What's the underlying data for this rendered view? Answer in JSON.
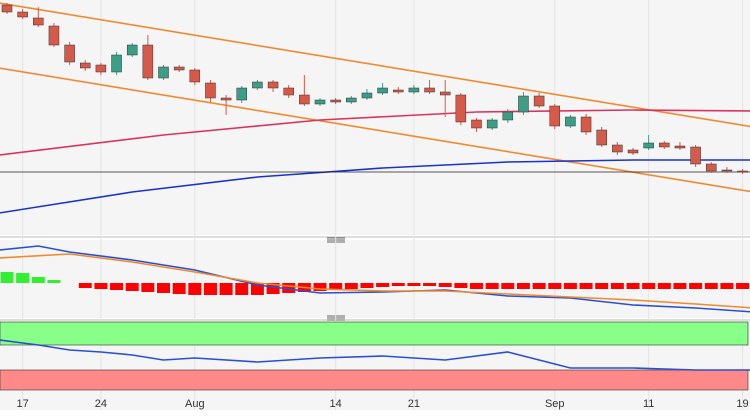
{
  "chart_data": [
    {
      "type": "candlestick",
      "categories": [
        null,
        "17",
        null,
        null,
        null,
        null,
        "24",
        null,
        null,
        null,
        null,
        null,
        "Aug",
        null,
        null,
        null,
        null,
        null,
        null,
        null,
        null,
        "14",
        null,
        null,
        null,
        null,
        "21",
        null,
        null,
        null,
        null,
        null,
        null,
        null,
        null,
        "Sep",
        null,
        null,
        null,
        null,
        null,
        "11",
        null,
        null,
        null,
        null,
        null,
        "19"
      ],
      "open": [
        230,
        223,
        217,
        209,
        190,
        172,
        170,
        163,
        180,
        190,
        157,
        168,
        165,
        152,
        137,
        135,
        147,
        153,
        147,
        140,
        131,
        135,
        133,
        137,
        142,
        145,
        143,
        147,
        143,
        140,
        115,
        107,
        115,
        123,
        139,
        129,
        109,
        118,
        105,
        90,
        85,
        87,
        92,
        89,
        88,
        71,
        65,
        64
      ],
      "high": [
        232,
        226,
        228,
        212,
        193,
        175,
        172,
        183,
        192,
        200,
        170,
        170,
        167,
        155,
        140,
        149,
        155,
        155,
        150,
        160,
        137,
        137,
        139,
        146,
        152,
        148,
        150,
        155,
        155,
        142,
        117,
        117,
        126,
        143,
        142,
        131,
        120,
        121,
        108,
        93,
        87,
        100,
        94,
        93,
        90,
        73,
        68,
        66
      ],
      "low": [
        221,
        216,
        208,
        188,
        170,
        164,
        160,
        160,
        178,
        155,
        155,
        163,
        150,
        133,
        120,
        132,
        145,
        143,
        137,
        129,
        129,
        131,
        131,
        135,
        140,
        141,
        141,
        141,
        118,
        110,
        103,
        105,
        112,
        120,
        127,
        106,
        107,
        100,
        88,
        80,
        80,
        85,
        86,
        85,
        68,
        62,
        62,
        61
      ],
      "close": [
        223,
        218,
        210,
        190,
        173,
        167,
        163,
        180,
        190,
        157,
        168,
        165,
        153,
        137,
        135,
        147,
        153,
        147,
        140,
        131,
        135,
        133,
        137,
        142,
        147,
        143,
        147,
        143,
        140,
        113,
        107,
        115,
        123,
        139,
        129,
        109,
        118,
        103,
        90,
        83,
        82,
        92,
        88,
        87,
        71,
        64,
        64,
        63
      ],
      "up_color": "#3d9e88",
      "down_color": "#d65a4a",
      "ylim": [
        0,
        235
      ],
      "lines": [
        {
          "color": "#ef8a2e",
          "x": [
            -0.5,
            47.7
          ],
          "values": [
            232,
            108
          ]
        },
        {
          "color": "#ef8a2e",
          "x": [
            -0.5,
            47.7
          ],
          "values": [
            167,
            43
          ]
        },
        {
          "color": "#d8345f",
          "x": [
            -0.5,
            10,
            20,
            30,
            40,
            47.7
          ],
          "values": [
            80,
            100,
            115,
            123,
            125,
            124
          ]
        },
        {
          "color": "#1a33c8",
          "x": [
            -0.5,
            8,
            16,
            24,
            32,
            40,
            47.7
          ],
          "values": [
            22,
            43,
            58,
            67,
            73,
            75,
            75
          ]
        }
      ]
    },
    {
      "type": "histogram",
      "values": [
        11,
        10,
        6,
        3,
        null,
        -5,
        -6,
        -7,
        -8,
        -9,
        -10,
        -11,
        -12,
        -12,
        -12,
        -12,
        -12,
        -11,
        -10,
        -9,
        -8,
        -7,
        -6,
        -5,
        -4,
        -3,
        -3,
        -3,
        -4,
        -5,
        -6,
        -6,
        -6,
        -6,
        -6,
        -6,
        -6,
        -6,
        -6,
        -6,
        -6,
        -6,
        -6,
        -6,
        -6,
        -6,
        -6,
        -6
      ],
      "up_color": "#33ee33",
      "down_color": "#ff0000",
      "ylim": [
        -35,
        43
      ],
      "lines": [
        {
          "color": "#2a4fd0",
          "x": [
            -0.5,
            2,
            4,
            8,
            12,
            16,
            20,
            24,
            28,
            32,
            36,
            40,
            44,
            47.7
          ],
          "values": [
            33,
            37,
            31,
            23,
            13,
            -2,
            -10,
            -9,
            -7,
            -13,
            -15,
            -22,
            -25,
            -29
          ]
        },
        {
          "color": "#ef8a2e",
          "x": [
            -0.5,
            4,
            8,
            12,
            16,
            20,
            24,
            28,
            32,
            36,
            40,
            44,
            47.7
          ],
          "values": [
            25,
            29,
            21,
            11,
            0,
            -6,
            -8,
            -8,
            -11,
            -14,
            -17,
            -21,
            -25
          ]
        }
      ]
    },
    {
      "type": "line",
      "ylim": [
        0,
        88
      ],
      "bands": [
        {
          "color": "#88ff88",
          "range": [
            65,
            88
          ]
        },
        {
          "color": "#ff8888",
          "range": [
            20,
            40
          ]
        }
      ],
      "lines": [
        {
          "color": "#2a4fd0",
          "x": [
            -0.5,
            2,
            4,
            6,
            8,
            10,
            12,
            16,
            20,
            24,
            28,
            32,
            34,
            36,
            40,
            44,
            47.7
          ],
          "values": [
            70,
            65,
            60,
            58,
            55,
            50,
            52,
            48,
            52,
            54,
            50,
            58,
            50,
            42,
            42,
            40,
            40
          ]
        }
      ]
    }
  ]
}
